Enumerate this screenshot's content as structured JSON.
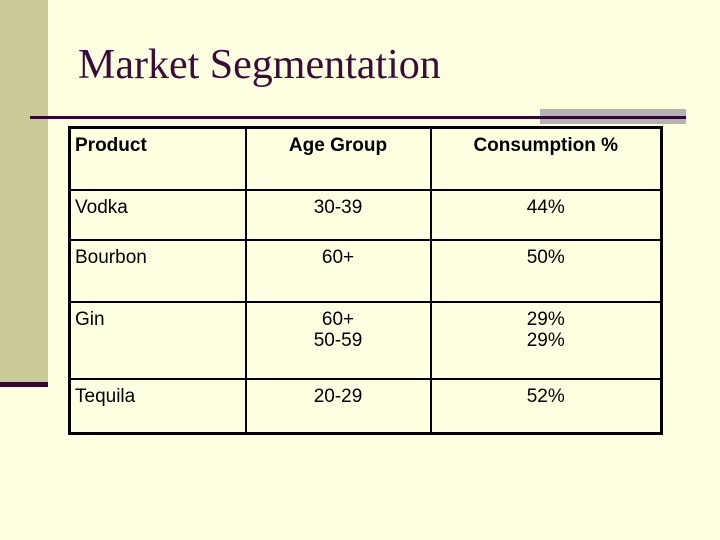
{
  "slide": {
    "title": "Market Segmentation"
  },
  "table": {
    "headers": [
      "Product",
      "Age Group",
      "Consumption %"
    ],
    "rows": [
      {
        "product": "Vodka",
        "age": [
          "30-39"
        ],
        "consumption": [
          "44%"
        ]
      },
      {
        "product": "Bourbon",
        "age": [
          "60+"
        ],
        "consumption": [
          "50%"
        ]
      },
      {
        "product": "Gin",
        "age": [
          "60+",
          "50-59"
        ],
        "consumption": [
          "29%",
          "29%"
        ]
      },
      {
        "product": "Tequila",
        "age": [
          "20-29"
        ],
        "consumption": [
          "52%"
        ]
      }
    ]
  },
  "colors": {
    "background": "#FFFFE1",
    "left_bar": "#CBCB99",
    "accent_dark_plum": "#2F0A2F",
    "title_text": "#3A0C3A",
    "gray_highlight_bar": "#B3B3B3",
    "table_border": "#000000",
    "table_text": "#000000"
  },
  "chart_data": {
    "type": "table",
    "title": "Market Segmentation",
    "columns": [
      "Product",
      "Age Group",
      "Consumption %"
    ],
    "rows": [
      [
        "Vodka",
        "30-39",
        "44%"
      ],
      [
        "Bourbon",
        "60+",
        "50%"
      ],
      [
        "Gin",
        "60+ / 50-59",
        "29% / 29%"
      ],
      [
        "Tequila",
        "20-29",
        "52%"
      ]
    ]
  }
}
